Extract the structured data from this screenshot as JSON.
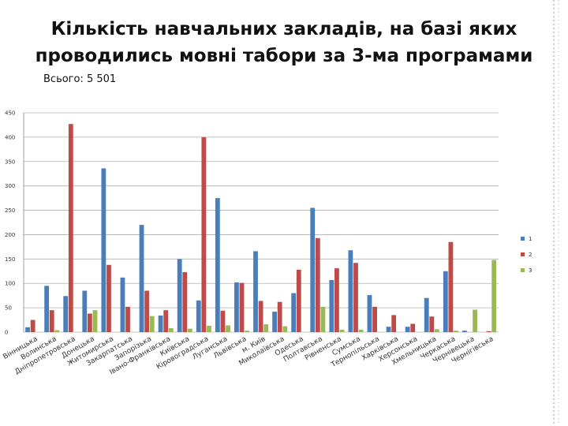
{
  "chart_data": {
    "type": "bar",
    "title": "Кількість навчальних закладів, на базі яких проводились мовні табори за 3-ма програмами",
    "subtitle": "Всього: 5 501",
    "ylim": [
      0,
      450
    ],
    "yticks": [
      0,
      50,
      100,
      150,
      200,
      250,
      300,
      350,
      400,
      450
    ],
    "legend_position": "right",
    "categories": [
      "Вінницька",
      "Волинська",
      "Дніпропетровська",
      "Донецька",
      "Житомирська",
      "Закарпатська",
      "Запорізька",
      "Івано-Франківська",
      "Київська",
      "Кіровоградська",
      "Луганська",
      "Львівська",
      "м. Київ",
      "Миколаївська",
      "Одеська",
      "Полтавська",
      "Рівненська",
      "Сумська",
      "Тернопільська",
      "Харківська",
      "Херсонська",
      "Хмельницька",
      "Черкаська",
      "Чернівецька",
      "Чернігівська"
    ],
    "series": [
      {
        "name": "1",
        "color": "#4a7ebb",
        "values": [
          10,
          95,
          74,
          85,
          336,
          112,
          220,
          34,
          150,
          65,
          275,
          102,
          166,
          42,
          80,
          255,
          107,
          168,
          76,
          11,
          11,
          70,
          125,
          3,
          0
        ]
      },
      {
        "name": "2",
        "color": "#be4b48",
        "values": [
          25,
          45,
          427,
          38,
          138,
          52,
          85,
          45,
          123,
          400,
          44,
          101,
          64,
          62,
          128,
          193,
          131,
          142,
          52,
          35,
          17,
          32,
          185,
          0,
          2
        ]
      },
      {
        "name": "3",
        "color": "#98b954",
        "values": [
          0,
          4,
          0,
          45,
          0,
          0,
          33,
          8,
          7,
          13,
          14,
          3,
          16,
          12,
          0,
          52,
          5,
          5,
          0,
          0,
          0,
          6,
          3,
          46,
          148
        ]
      }
    ]
  }
}
